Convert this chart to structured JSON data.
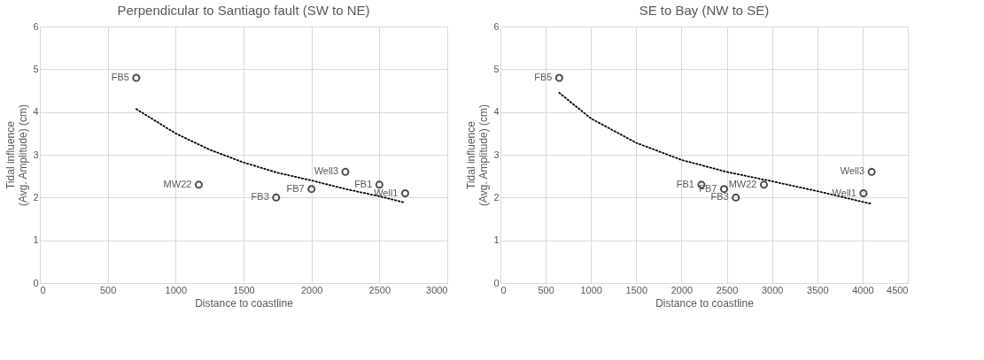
{
  "chart_data": [
    {
      "type": "scatter",
      "title": "Perpendicular to Santiago fault (SW to NE)",
      "xlabel": "Distance to coastline",
      "ylabel": "Tidal influence\n(Avg. Amplitude) (cm)",
      "xlim": [
        0,
        3000
      ],
      "xticks": [
        0,
        500,
        1000,
        1500,
        2000,
        2500,
        3000
      ],
      "ylim": [
        0,
        6
      ],
      "yticks": [
        0,
        1,
        2,
        3,
        4,
        5,
        6
      ],
      "grid": true,
      "series": [
        {
          "marker": "circle",
          "color": "#000000",
          "x": [
            710,
            1170,
            1740,
            2000,
            2250,
            2500,
            2690
          ],
          "values": [
            4.8,
            2.3,
            2.0,
            2.2,
            2.6,
            2.3,
            2.1
          ]
        },
        {
          "type": "line",
          "line_style": "dotted",
          "color": "#000000",
          "x": [
            710,
            1000,
            1250,
            1500,
            1750,
            2000,
            2250,
            2500,
            2690
          ],
          "values": [
            4.07,
            3.5,
            3.12,
            2.82,
            2.58,
            2.4,
            2.2,
            2.03,
            1.88
          ]
        }
      ],
      "annotations": [
        {
          "text": "FB5",
          "x": 710,
          "y": 4.8
        },
        {
          "text": "MW22",
          "x": 1170,
          "y": 2.3
        },
        {
          "text": "FB3",
          "x": 1740,
          "y": 2.0
        },
        {
          "text": "FB7",
          "x": 2000,
          "y": 2.2
        },
        {
          "text": "Well3",
          "x": 2250,
          "y": 2.6
        },
        {
          "text": "FB1",
          "x": 2500,
          "y": 2.3
        },
        {
          "text": "Well1",
          "x": 2690,
          "y": 2.1
        }
      ]
    },
    {
      "type": "scatter",
      "title": "SE to Bay (NW to SE)",
      "xlabel": "Distance to coastline",
      "ylabel": "Tidal influence\n(Avg. Amplitude) (cm)",
      "xlim": [
        0,
        4500
      ],
      "xticks": [
        0,
        500,
        1000,
        1500,
        2000,
        2500,
        3000,
        3500,
        4000,
        4500
      ],
      "ylim": [
        0,
        6
      ],
      "yticks": [
        0,
        1,
        2,
        3,
        4,
        5,
        6
      ],
      "grid": true,
      "series": [
        {
          "marker": "circle",
          "color": "#000000",
          "x": [
            650,
            2220,
            2470,
            2600,
            2910,
            4010,
            4100
          ],
          "values": [
            4.8,
            2.3,
            2.2,
            2.0,
            2.3,
            2.1,
            2.6
          ]
        },
        {
          "type": "line",
          "line_style": "dotted",
          "color": "#000000",
          "x": [
            650,
            1000,
            1500,
            2000,
            2500,
            3000,
            3500,
            4100
          ],
          "values": [
            4.45,
            3.85,
            3.28,
            2.88,
            2.6,
            2.38,
            2.15,
            1.85
          ]
        }
      ],
      "annotations": [
        {
          "text": "FB5",
          "x": 650,
          "y": 4.8
        },
        {
          "text": "FB1",
          "x": 2220,
          "y": 2.3
        },
        {
          "text": "FB7",
          "x": 2470,
          "y": 2.2
        },
        {
          "text": "FB3",
          "x": 2600,
          "y": 2.0
        },
        {
          "text": "MW22",
          "x": 2910,
          "y": 2.3
        },
        {
          "text": "Well1",
          "x": 4010,
          "y": 2.1
        },
        {
          "text": "Well3",
          "x": 4100,
          "y": 2.6
        }
      ]
    }
  ]
}
